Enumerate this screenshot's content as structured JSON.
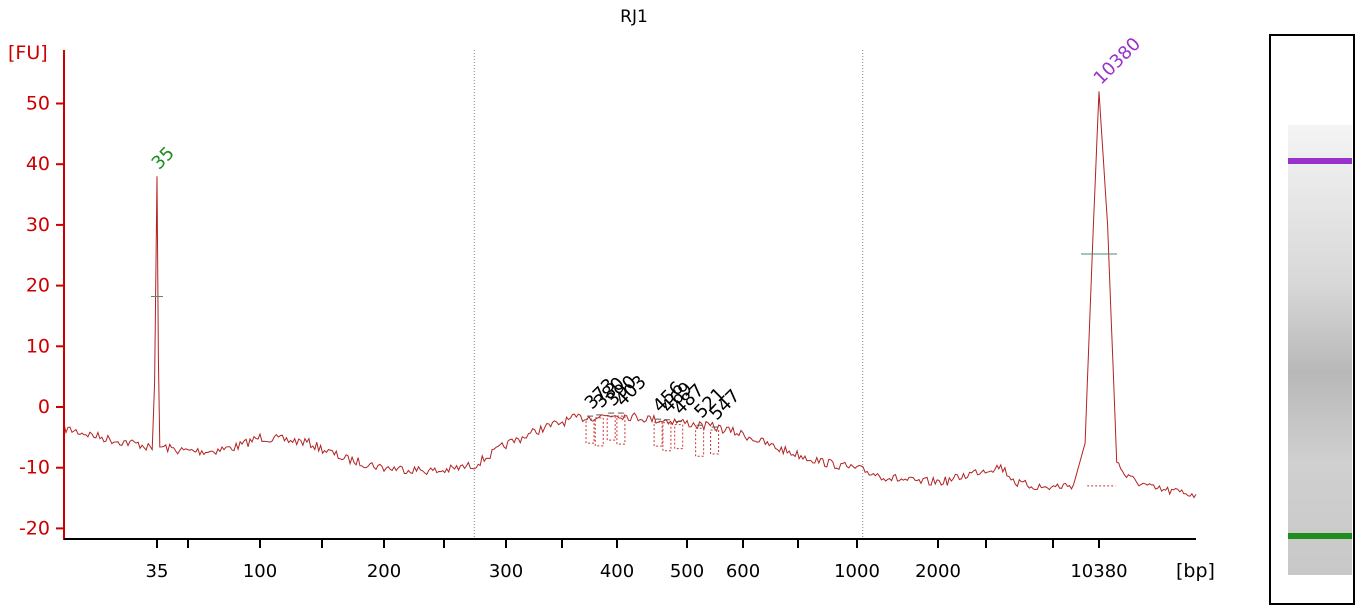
{
  "chart_data": {
    "type": "line",
    "title": "RJ1",
    "ylabel": "[FU]",
    "xlabel": "[bp]",
    "ylim": [
      -21,
      57
    ],
    "yticks": [
      50,
      40,
      30,
      20,
      10,
      0,
      -10,
      -20
    ],
    "xticks": [
      "35",
      "100",
      "200",
      "300",
      "400",
      "500",
      "600",
      "1000",
      "2000",
      "10380"
    ],
    "x_scale": "nonlinear (electrophoresis migration)",
    "grid": false,
    "ref_lines_bp": [
      270,
      1050
    ],
    "series": [
      {
        "color": "#b22222",
        "points": [
          [
            20,
            -3.5
          ],
          [
            27,
            -5.5
          ],
          [
            32,
            -6.2
          ],
          [
            34,
            -7
          ],
          [
            34.5,
            4
          ],
          [
            35,
            38
          ],
          [
            35.5,
            8
          ],
          [
            36,
            -6.5
          ],
          [
            45,
            -7.2
          ],
          [
            60,
            -7.3
          ],
          [
            80,
            -6.5
          ],
          [
            100,
            -5
          ],
          [
            130,
            -5.8
          ],
          [
            160,
            -8.5
          ],
          [
            200,
            -10
          ],
          [
            240,
            -10.6
          ],
          [
            270,
            -9.6
          ],
          [
            300,
            -6.2
          ],
          [
            330,
            -3.5
          ],
          [
            360,
            -1.8
          ],
          [
            380,
            -1.6
          ],
          [
            400,
            -1.2
          ],
          [
            420,
            -1.6
          ],
          [
            450,
            -2
          ],
          [
            487,
            -2.4
          ],
          [
            521,
            -3
          ],
          [
            547,
            -3.3
          ],
          [
            600,
            -4.5
          ],
          [
            700,
            -6.8
          ],
          [
            850,
            -9
          ],
          [
            1000,
            -10.2
          ],
          [
            1300,
            -11.6
          ],
          [
            1700,
            -12.4
          ],
          [
            2200,
            -12.2
          ],
          [
            3000,
            -10.6
          ],
          [
            3800,
            -9.8
          ],
          [
            4500,
            -12.6
          ],
          [
            6000,
            -13.3
          ],
          [
            8000,
            -12.8
          ],
          [
            9000,
            -6
          ],
          [
            9800,
            30
          ],
          [
            10380,
            52
          ],
          [
            11000,
            30
          ],
          [
            11700,
            -9
          ],
          [
            12500,
            -11.5
          ],
          [
            15000,
            -13.5
          ],
          [
            20000,
            -14.4
          ]
        ]
      }
    ],
    "peaks": [
      {
        "label": "35",
        "bp": 35,
        "fu": 38,
        "color": "#1e8c1e"
      },
      {
        "label": "373",
        "bp": 373,
        "fu": -1.5,
        "color": "#000000"
      },
      {
        "label": "380",
        "bp": 382,
        "fu": -1.3,
        "color": "#000000"
      },
      {
        "label": "390",
        "bp": 394,
        "fu": -1,
        "color": "#000000"
      },
      {
        "label": "403",
        "bp": 405,
        "fu": -1,
        "color": "#000000"
      },
      {
        "label": "456",
        "bp": 456,
        "fu": -2,
        "color": "#000000"
      },
      {
        "label": "469",
        "bp": 469,
        "fu": -2.1,
        "color": "#000000"
      },
      {
        "label": "487",
        "bp": 487,
        "fu": -2.4,
        "color": "#000000"
      },
      {
        "label": "521",
        "bp": 521,
        "fu": -3,
        "color": "#000000"
      },
      {
        "label": "547",
        "bp": 547,
        "fu": -3.3,
        "color": "#000000"
      },
      {
        "label": "10380",
        "bp": 10380,
        "fu": 52,
        "color": "#9932cc"
      }
    ],
    "gel_lane": {
      "markers": [
        {
          "bp": 10380,
          "color": "#9932cc"
        },
        {
          "bp": 35,
          "color": "#1e8c1e"
        }
      ]
    }
  },
  "colors": {
    "axis": "#cc0000",
    "trace": "#b22222",
    "tick_text": "#000000"
  }
}
